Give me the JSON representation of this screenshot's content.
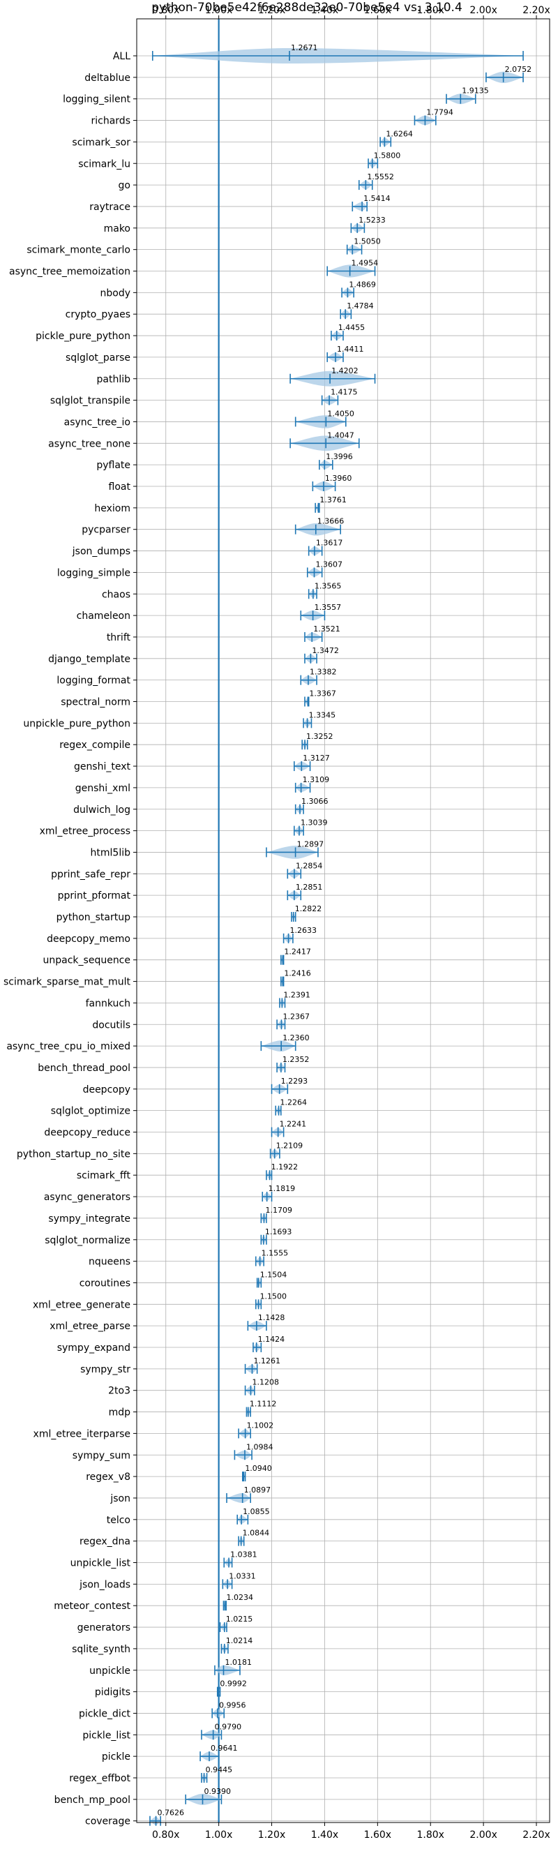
{
  "chart_data": {
    "type": "violin",
    "title": "python-70be5e42f6e288de32e0-70be5e4 vs. 3.10.4",
    "xlabel": "",
    "ylabel": "",
    "x_ticks": [
      "0.80x",
      "1.00x",
      "1.20x",
      "1.40x",
      "1.60x",
      "1.80x",
      "2.00x",
      "2.20x"
    ],
    "x_tick_values": [
      0.8,
      1.0,
      1.2,
      1.4,
      1.6,
      1.8,
      2.0,
      2.2
    ],
    "xlim": [
      0.69,
      2.25
    ],
    "reference_line": 1.0,
    "grid": true,
    "series_color": "#1f77b4",
    "body_color": "#a6c8e4",
    "categories": [
      "ALL",
      "deltablue",
      "logging_silent",
      "richards",
      "scimark_sor",
      "scimark_lu",
      "go",
      "raytrace",
      "mako",
      "scimark_monte_carlo",
      "async_tree_memoization",
      "nbody",
      "crypto_pyaes",
      "pickle_pure_python",
      "sqlglot_parse",
      "pathlib",
      "sqlglot_transpile",
      "async_tree_io",
      "async_tree_none",
      "pyflate",
      "float",
      "hexiom",
      "pycparser",
      "json_dumps",
      "logging_simple",
      "chaos",
      "chameleon",
      "thrift",
      "django_template",
      "logging_format",
      "spectral_norm",
      "unpickle_pure_python",
      "regex_compile",
      "genshi_text",
      "genshi_xml",
      "dulwich_log",
      "xml_etree_process",
      "html5lib",
      "pprint_safe_repr",
      "pprint_pformat",
      "python_startup",
      "deepcopy_memo",
      "unpack_sequence",
      "scimark_sparse_mat_mult",
      "fannkuch",
      "docutils",
      "async_tree_cpu_io_mixed",
      "bench_thread_pool",
      "deepcopy",
      "sqlglot_optimize",
      "deepcopy_reduce",
      "python_startup_no_site",
      "scimark_fft",
      "async_generators",
      "sympy_integrate",
      "sqlglot_normalize",
      "nqueens",
      "coroutines",
      "xml_etree_generate",
      "xml_etree_parse",
      "sympy_expand",
      "sympy_str",
      "2to3",
      "mdp",
      "xml_etree_iterparse",
      "sympy_sum",
      "regex_v8",
      "json",
      "telco",
      "regex_dna",
      "unpickle_list",
      "json_loads",
      "meteor_contest",
      "generators",
      "sqlite_synth",
      "unpickle",
      "pidigits",
      "pickle_dict",
      "pickle_list",
      "pickle",
      "regex_effbot",
      "bench_mp_pool",
      "coverage"
    ],
    "value_labels": [
      "1.2671",
      "2.0752",
      "1.9135",
      "1.7794",
      "1.6264",
      "1.5800",
      "1.5552",
      "1.5414",
      "1.5233",
      "1.5050",
      "1.4954",
      "1.4869",
      "1.4784",
      "1.4455",
      "1.4411",
      "1.4202",
      "1.4175",
      "1.4050",
      "1.4047",
      "1.3996",
      "1.3960",
      "1.3761",
      "1.3666",
      "1.3617",
      "1.3607",
      "1.3565",
      "1.3557",
      "1.3521",
      "1.3472",
      "1.3382",
      "1.3367",
      "1.3345",
      "1.3252",
      "1.3127",
      "1.3109",
      "1.3066",
      "1.3039",
      "1.2897",
      "1.2854",
      "1.2851",
      "1.2822",
      "1.2633",
      "1.2417",
      "1.2416",
      "1.2391",
      "1.2367",
      "1.2360",
      "1.2352",
      "1.2293",
      "1.2264",
      "1.2241",
      "1.2109",
      "1.1922",
      "1.1819",
      "1.1709",
      "1.1693",
      "1.1555",
      "1.1504",
      "1.1500",
      "1.1428",
      "1.1424",
      "1.1261",
      "1.1208",
      "1.1112",
      "1.1002",
      "1.0984",
      "1.0940",
      "1.0897",
      "1.0855",
      "1.0844",
      "1.0381",
      "1.0331",
      "1.0234",
      "1.0215",
      "1.0214",
      "1.0181",
      "0.9992",
      "0.9956",
      "0.9790",
      "0.9641",
      "0.9445",
      "0.9390",
      "0.7626"
    ],
    "mins": [
      0.75,
      2.01,
      1.86,
      1.74,
      1.61,
      1.565,
      1.53,
      1.505,
      1.5,
      1.485,
      1.41,
      1.465,
      1.46,
      1.425,
      1.41,
      1.27,
      1.39,
      1.29,
      1.27,
      1.38,
      1.355,
      1.365,
      1.29,
      1.34,
      1.335,
      1.34,
      1.31,
      1.325,
      1.325,
      1.31,
      1.325,
      1.32,
      1.315,
      1.285,
      1.29,
      1.29,
      1.285,
      1.18,
      1.26,
      1.26,
      1.275,
      1.245,
      1.235,
      1.235,
      1.23,
      1.22,
      1.16,
      1.22,
      1.2,
      1.215,
      1.2,
      1.195,
      1.18,
      1.165,
      1.16,
      1.16,
      1.14,
      1.145,
      1.14,
      1.11,
      1.13,
      1.1,
      1.1,
      1.105,
      1.075,
      1.06,
      1.09,
      1.03,
      1.07,
      1.075,
      1.02,
      1.015,
      1.018,
      1.005,
      1.01,
      0.985,
      0.995,
      0.975,
      0.935,
      0.93,
      0.935,
      0.875,
      0.74
    ],
    "maxs": [
      2.15,
      2.15,
      1.97,
      1.82,
      1.65,
      1.6,
      1.58,
      1.56,
      1.55,
      1.54,
      1.59,
      1.51,
      1.5,
      1.47,
      1.47,
      1.59,
      1.45,
      1.48,
      1.53,
      1.43,
      1.44,
      1.38,
      1.46,
      1.39,
      1.39,
      1.37,
      1.4,
      1.39,
      1.37,
      1.37,
      1.34,
      1.35,
      1.335,
      1.345,
      1.345,
      1.32,
      1.32,
      1.375,
      1.31,
      1.31,
      1.29,
      1.28,
      1.245,
      1.245,
      1.25,
      1.25,
      1.29,
      1.25,
      1.26,
      1.235,
      1.245,
      1.23,
      1.2,
      1.2,
      1.18,
      1.18,
      1.17,
      1.16,
      1.16,
      1.18,
      1.16,
      1.145,
      1.135,
      1.12,
      1.12,
      1.125,
      1.1,
      1.12,
      1.11,
      1.095,
      1.05,
      1.05,
      1.028,
      1.03,
      1.035,
      1.08,
      1.005,
      1.02,
      1.01,
      1.0,
      0.955,
      1.01,
      0.78
    ],
    "means": [
      1.2671,
      2.0752,
      1.9135,
      1.7794,
      1.6264,
      1.58,
      1.5552,
      1.5414,
      1.5233,
      1.505,
      1.4954,
      1.4869,
      1.4784,
      1.4455,
      1.4411,
      1.4202,
      1.4175,
      1.405,
      1.4047,
      1.3996,
      1.396,
      1.3761,
      1.3666,
      1.3617,
      1.3607,
      1.3565,
      1.3557,
      1.3521,
      1.3472,
      1.3382,
      1.3367,
      1.3345,
      1.3252,
      1.3127,
      1.3109,
      1.3066,
      1.3039,
      1.2897,
      1.2854,
      1.2851,
      1.2822,
      1.2633,
      1.2417,
      1.2416,
      1.2391,
      1.2367,
      1.236,
      1.2352,
      1.2293,
      1.2264,
      1.2241,
      1.2109,
      1.1922,
      1.1819,
      1.1709,
      1.1693,
      1.1555,
      1.1504,
      1.15,
      1.1428,
      1.1424,
      1.1261,
      1.1208,
      1.1112,
      1.1002,
      1.0984,
      1.094,
      1.0897,
      1.0855,
      1.0844,
      1.0381,
      1.0331,
      1.0234,
      1.0215,
      1.0214,
      1.0181,
      0.9992,
      0.9956,
      0.979,
      0.9641,
      0.9445,
      0.939,
      0.7626
    ]
  }
}
